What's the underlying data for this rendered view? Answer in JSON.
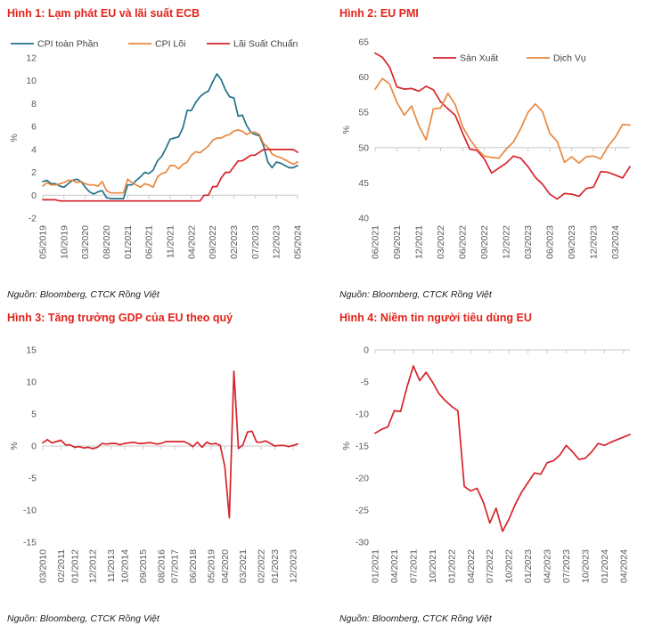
{
  "page": {
    "background": "#ffffff"
  },
  "colors": {
    "title": "#e2231a",
    "red": "#d7232b",
    "orange": "#e8883f",
    "teal": "#20718a",
    "axis_text": "#595959",
    "axis_line": "#c8c8c8",
    "legend_text": "#404040",
    "source_text": "#1a1a1a"
  },
  "chart_data": [
    {
      "type": "line",
      "title": "Hình 1: Lạm phát EU và lãi suất ECB",
      "source": "Nguồn: Bloomberg, CTCK Rồng Việt",
      "ylabel": "%",
      "ylim": [
        -2,
        12
      ],
      "yticks": [
        12,
        10,
        8,
        6,
        4,
        2,
        0,
        -2
      ],
      "baseline": 0,
      "grid": false,
      "legend_position": "top-inside",
      "x_labels": [
        "05/2019",
        "10/2019",
        "03/2020",
        "08/2020",
        "01/2021",
        "06/2021",
        "11/2021",
        "04/2022",
        "09/2022",
        "02/2023",
        "07/2023",
        "12/2023",
        "05/2024"
      ],
      "tick_indices": [
        0,
        5,
        10,
        15,
        20,
        25,
        30,
        35,
        40,
        45,
        50,
        55,
        60
      ],
      "series": [
        {
          "name": "CPI toàn Phần",
          "color_key": "teal",
          "values": [
            1.2,
            1.3,
            1.0,
            1.0,
            0.8,
            0.7,
            1.0,
            1.3,
            1.4,
            1.2,
            0.7,
            0.3,
            0.1,
            0.3,
            0.4,
            -0.2,
            -0.3,
            -0.3,
            -0.3,
            -0.3,
            0.9,
            0.9,
            1.3,
            1.6,
            2.0,
            1.9,
            2.2,
            3.0,
            3.4,
            4.1,
            4.9,
            5.0,
            5.1,
            5.9,
            7.4,
            7.4,
            8.1,
            8.6,
            8.9,
            9.1,
            9.9,
            10.6,
            10.1,
            9.2,
            8.6,
            8.5,
            6.9,
            7.0,
            6.1,
            5.5,
            5.3,
            5.2,
            4.3,
            2.9,
            2.4,
            2.9,
            2.8,
            2.6,
            2.4,
            2.4,
            2.6
          ]
        },
        {
          "name": "CPI Lõi",
          "color_key": "orange",
          "values": [
            0.8,
            1.1,
            0.9,
            0.9,
            1.0,
            1.1,
            1.3,
            1.3,
            1.1,
            1.2,
            1.0,
            0.9,
            0.9,
            0.8,
            1.2,
            0.4,
            0.2,
            0.2,
            0.2,
            0.2,
            1.4,
            1.1,
            0.9,
            0.7,
            1.0,
            0.9,
            0.7,
            1.6,
            1.9,
            2.0,
            2.6,
            2.6,
            2.3,
            2.7,
            2.9,
            3.5,
            3.8,
            3.7,
            4.0,
            4.3,
            4.8,
            5.0,
            5.0,
            5.2,
            5.3,
            5.6,
            5.7,
            5.6,
            5.3,
            5.5,
            5.5,
            5.3,
            4.5,
            4.2,
            3.6,
            3.4,
            3.3,
            3.1,
            2.9,
            2.7,
            2.9
          ]
        },
        {
          "name": "Lãi Suất Chuẩn",
          "color_key": "red",
          "values": [
            -0.4,
            -0.4,
            -0.4,
            -0.4,
            -0.5,
            -0.5,
            -0.5,
            -0.5,
            -0.5,
            -0.5,
            -0.5,
            -0.5,
            -0.5,
            -0.5,
            -0.5,
            -0.5,
            -0.5,
            -0.5,
            -0.5,
            -0.5,
            -0.5,
            -0.5,
            -0.5,
            -0.5,
            -0.5,
            -0.5,
            -0.5,
            -0.5,
            -0.5,
            -0.5,
            -0.5,
            -0.5,
            -0.5,
            -0.5,
            -0.5,
            -0.5,
            -0.5,
            -0.5,
            0.0,
            0.0,
            0.75,
            0.75,
            1.5,
            2.0,
            2.0,
            2.5,
            3.0,
            3.0,
            3.25,
            3.5,
            3.5,
            3.75,
            4.0,
            4.0,
            4.0,
            4.0,
            4.0,
            4.0,
            4.0,
            4.0,
            3.75
          ]
        }
      ]
    },
    {
      "type": "line",
      "title": "Hình 2: EU PMI",
      "source": "Nguồn: Bloomberg, CTCK Rồng Việt",
      "ylabel": "%",
      "ylim": [
        40,
        65
      ],
      "yticks": [
        65,
        60,
        55,
        50,
        45,
        40
      ],
      "baseline": 50,
      "grid": false,
      "legend_position": "top-inside",
      "x_labels": [
        "06/2021",
        "09/2021",
        "12/2021",
        "03/2022",
        "06/2022",
        "09/2022",
        "12/2022",
        "03/2023",
        "06/2023",
        "09/2023",
        "12/2023",
        "03/2024"
      ],
      "tick_indices": [
        0,
        3,
        6,
        9,
        12,
        15,
        18,
        21,
        24,
        27,
        30,
        33
      ],
      "series": [
        {
          "name": "Sản Xuất",
          "color_key": "red",
          "values": [
            63.4,
            62.8,
            61.4,
            58.6,
            58.3,
            58.4,
            58.0,
            58.7,
            58.2,
            56.5,
            55.5,
            54.6,
            52.1,
            49.8,
            49.6,
            48.4,
            46.4,
            47.1,
            47.8,
            48.8,
            48.5,
            47.3,
            45.8,
            44.8,
            43.4,
            42.7,
            43.5,
            43.4,
            43.1,
            44.2,
            44.4,
            46.6,
            46.5,
            46.1,
            45.7,
            47.3
          ]
        },
        {
          "name": "Dịch Vụ",
          "color_key": "orange",
          "values": [
            58.3,
            59.8,
            59.0,
            56.4,
            54.6,
            55.9,
            53.1,
            51.1,
            55.5,
            55.6,
            57.7,
            56.1,
            53.0,
            51.2,
            49.8,
            48.8,
            48.6,
            48.5,
            49.8,
            50.8,
            52.7,
            55.0,
            56.2,
            55.1,
            52.0,
            50.9,
            47.9,
            48.7,
            47.8,
            48.7,
            48.8,
            48.4,
            50.2,
            51.5,
            53.3,
            53.2
          ]
        }
      ]
    },
    {
      "type": "line",
      "title": "Hình 3: Tăng trưởng GDP của EU theo quý",
      "source": "Nguồn: Bloomberg, CTCK Rồng Việt",
      "ylabel": "%",
      "ylim": [
        -15,
        15
      ],
      "yticks": [
        15,
        10,
        5,
        0,
        -5,
        -10,
        -15
      ],
      "baseline": 0,
      "grid": false,
      "legend_position": "none",
      "x_labels": [
        "03/2010",
        "02/2011",
        "01/2012",
        "12/2012",
        "11/2013",
        "10/2014",
        "09/2015",
        "08/2016",
        "07/2017",
        "06/2018",
        "05/2019",
        "04/2020",
        "03/2021",
        "02/2022",
        "01/2023",
        "12/2023"
      ],
      "tick_indices": [
        0,
        4,
        7,
        11,
        15,
        18,
        22,
        26,
        29,
        33,
        37,
        40,
        44,
        48,
        51,
        55
      ],
      "series": [
        {
          "name": "Tăng trưởng GDP theo quý",
          "color_key": "red",
          "values": [
            0.5,
            1.0,
            0.5,
            0.7,
            0.9,
            0.2,
            0.2,
            -0.2,
            -0.1,
            -0.3,
            -0.2,
            -0.4,
            -0.2,
            0.4,
            0.3,
            0.4,
            0.4,
            0.2,
            0.4,
            0.5,
            0.6,
            0.4,
            0.4,
            0.5,
            0.5,
            0.3,
            0.4,
            0.7,
            0.7,
            0.7,
            0.7,
            0.7,
            0.4,
            -0.1,
            0.6,
            -0.2,
            0.6,
            0.3,
            0.4,
            0.1,
            -3.2,
            -11.2,
            11.7,
            -0.4,
            0.2,
            2.2,
            2.3,
            0.6,
            0.6,
            0.8,
            0.4,
            0.0,
            0.1,
            0.1,
            -0.1,
            0.1,
            0.3
          ]
        }
      ]
    },
    {
      "type": "line",
      "title": "Hình 4: Niềm tin người tiêu dùng EU",
      "source": "Nguồn: Bloomberg, CTCK Rồng Việt",
      "ylabel": "%",
      "ylim": [
        -30,
        0
      ],
      "yticks": [
        0,
        -5,
        -10,
        -15,
        -20,
        -25,
        -30
      ],
      "baseline": 0,
      "grid": false,
      "legend_position": "none",
      "x_labels": [
        "01/2021",
        "04/2021",
        "07/2021",
        "10/2021",
        "01/2022",
        "04/2022",
        "07/2022",
        "10/2022",
        "01/2023",
        "04/2023",
        "07/2023",
        "10/2023",
        "01/2024",
        "04/2024"
      ],
      "tick_indices": [
        0,
        3,
        6,
        9,
        12,
        15,
        18,
        21,
        24,
        27,
        30,
        33,
        36,
        39
      ],
      "series": [
        {
          "name": "Niềm tin người tiêu dùng EU",
          "color_key": "red",
          "values": [
            -13.0,
            -12.4,
            -12.0,
            -9.5,
            -9.6,
            -5.8,
            -2.5,
            -4.8,
            -3.5,
            -5.0,
            -6.8,
            -7.9,
            -8.8,
            -9.5,
            -21.3,
            -22.0,
            -21.6,
            -23.8,
            -27.0,
            -24.7,
            -28.3,
            -26.4,
            -24.1,
            -22.2,
            -20.7,
            -19.2,
            -19.4,
            -17.6,
            -17.3,
            -16.4,
            -14.9,
            -15.9,
            -17.1,
            -16.9,
            -15.9,
            -14.6,
            -14.9,
            -14.4,
            -14.0,
            -13.6,
            -13.2
          ]
        }
      ]
    }
  ]
}
